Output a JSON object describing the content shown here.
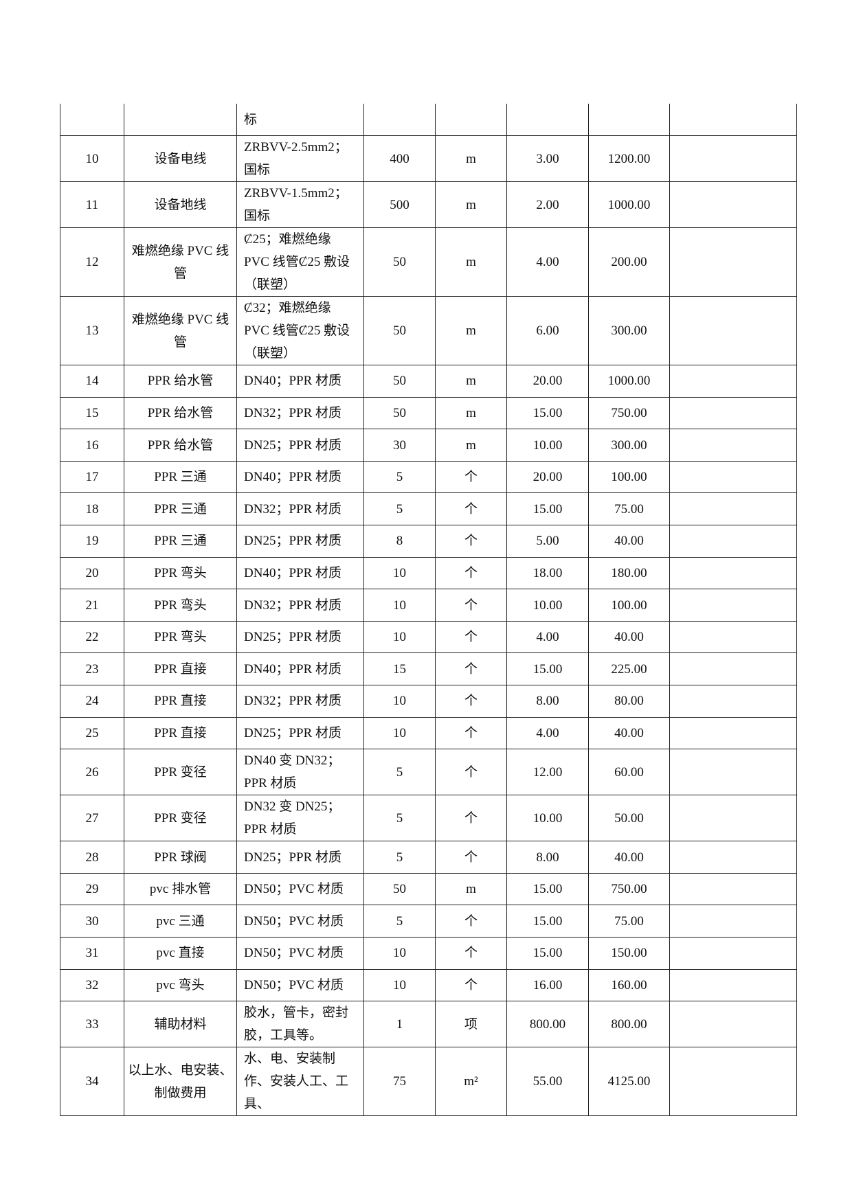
{
  "rows": [
    {
      "no": "",
      "name": "",
      "spec": "标",
      "qty": "",
      "unit": "",
      "price": "",
      "total": "",
      "note": "",
      "h": "h1",
      "first": true
    },
    {
      "no": "10",
      "name": "设备电线",
      "spec": "ZRBVV-2.5mm2；国标",
      "qty": "400",
      "unit": "m",
      "price": "3.00",
      "total": "1200.00",
      "note": "",
      "h": "h2"
    },
    {
      "no": "11",
      "name": "设备地线",
      "spec": "ZRBVV-1.5mm2；国标",
      "qty": "500",
      "unit": "m",
      "price": "2.00",
      "total": "1000.00",
      "note": "",
      "h": "h2"
    },
    {
      "no": "12",
      "name": "难燃绝缘 PVC 线管",
      "spec": "Ȼ25；难燃绝缘 PVC 线管Ȼ25 敷设（联塑）",
      "qty": "50",
      "unit": "m",
      "price": "4.00",
      "total": "200.00",
      "note": "",
      "h": "h3"
    },
    {
      "no": "13",
      "name": "难燃绝缘 PVC 线管",
      "spec": "Ȼ32；难燃绝缘 PVC 线管Ȼ25 敷设（联塑）",
      "qty": "50",
      "unit": "m",
      "price": "6.00",
      "total": "300.00",
      "note": "",
      "h": "h3"
    },
    {
      "no": "14",
      "name": "PPR 给水管",
      "spec": "DN40；PPR 材质",
      "qty": "50",
      "unit": "m",
      "price": "20.00",
      "total": "1000.00",
      "note": "",
      "h": "h1"
    },
    {
      "no": "15",
      "name": "PPR 给水管",
      "spec": "DN32；PPR 材质",
      "qty": "50",
      "unit": "m",
      "price": "15.00",
      "total": "750.00",
      "note": "",
      "h": "h1"
    },
    {
      "no": "16",
      "name": "PPR 给水管",
      "spec": "DN25；PPR 材质",
      "qty": "30",
      "unit": "m",
      "price": "10.00",
      "total": "300.00",
      "note": "",
      "h": "h1"
    },
    {
      "no": "17",
      "name": "PPR 三通",
      "spec": "DN40；PPR 材质",
      "qty": "5",
      "unit": "个",
      "price": "20.00",
      "total": "100.00",
      "note": "",
      "h": "h1"
    },
    {
      "no": "18",
      "name": "PPR 三通",
      "spec": "DN32；PPR 材质",
      "qty": "5",
      "unit": "个",
      "price": "15.00",
      "total": "75.00",
      "note": "",
      "h": "h1"
    },
    {
      "no": "19",
      "name": "PPR 三通",
      "spec": "DN25；PPR 材质",
      "qty": "8",
      "unit": "个",
      "price": "5.00",
      "total": "40.00",
      "note": "",
      "h": "h1"
    },
    {
      "no": "20",
      "name": "PPR 弯头",
      "spec": "DN40；PPR 材质",
      "qty": "10",
      "unit": "个",
      "price": "18.00",
      "total": "180.00",
      "note": "",
      "h": "h1"
    },
    {
      "no": "21",
      "name": "PPR 弯头",
      "spec": "DN32；PPR 材质",
      "qty": "10",
      "unit": "个",
      "price": "10.00",
      "total": "100.00",
      "note": "",
      "h": "h1"
    },
    {
      "no": "22",
      "name": "PPR 弯头",
      "spec": "DN25；PPR 材质",
      "qty": "10",
      "unit": "个",
      "price": "4.00",
      "total": "40.00",
      "note": "",
      "h": "h1"
    },
    {
      "no": "23",
      "name": "PPR 直接",
      "spec": "DN40；PPR 材质",
      "qty": "15",
      "unit": "个",
      "price": "15.00",
      "total": "225.00",
      "note": "",
      "h": "h1"
    },
    {
      "no": "24",
      "name": "PPR 直接",
      "spec": "DN32；PPR 材质",
      "qty": "10",
      "unit": "个",
      "price": "8.00",
      "total": "80.00",
      "note": "",
      "h": "h1"
    },
    {
      "no": "25",
      "name": "PPR 直接",
      "spec": "DN25；PPR 材质",
      "qty": "10",
      "unit": "个",
      "price": "4.00",
      "total": "40.00",
      "note": "",
      "h": "h1"
    },
    {
      "no": "26",
      "name": "PPR 变径",
      "spec": "DN40 变 DN32；PPR 材质",
      "qty": "5",
      "unit": "个",
      "price": "12.00",
      "total": "60.00",
      "note": "",
      "h": "h2"
    },
    {
      "no": "27",
      "name": "PPR 变径",
      "spec": "DN32 变 DN25；PPR 材质",
      "qty": "5",
      "unit": "个",
      "price": "10.00",
      "total": "50.00",
      "note": "",
      "h": "h2"
    },
    {
      "no": "28",
      "name": "PPR 球阀",
      "spec": "DN25；PPR 材质",
      "qty": "5",
      "unit": "个",
      "price": "8.00",
      "total": "40.00",
      "note": "",
      "h": "h1"
    },
    {
      "no": "29",
      "name": "pvc 排水管",
      "spec": "DN50；PVC 材质",
      "qty": "50",
      "unit": "m",
      "price": "15.00",
      "total": "750.00",
      "note": "",
      "h": "h1"
    },
    {
      "no": "30",
      "name": "pvc 三通",
      "spec": "DN50；PVC 材质",
      "qty": "5",
      "unit": "个",
      "price": "15.00",
      "total": "75.00",
      "note": "",
      "h": "h1"
    },
    {
      "no": "31",
      "name": "pvc 直接",
      "spec": "DN50；PVC 材质",
      "qty": "10",
      "unit": "个",
      "price": "15.00",
      "total": "150.00",
      "note": "",
      "h": "h1"
    },
    {
      "no": "32",
      "name": "pvc 弯头",
      "spec": "DN50；PVC 材质",
      "qty": "10",
      "unit": "个",
      "price": "16.00",
      "total": "160.00",
      "note": "",
      "h": "h1"
    },
    {
      "no": "33",
      "name": "辅助材料",
      "spec": "胶水，管卡，密封胶，工具等。",
      "qty": "1",
      "unit": "项",
      "price": "800.00",
      "total": "800.00",
      "note": "",
      "h": "h2"
    },
    {
      "no": "34",
      "name": "以上水、电安装、制做费用",
      "spec": "水、电、安装制作、安装人工、工具、",
      "qty": "75",
      "unit": "m²",
      "price": "55.00",
      "total": "4125.00",
      "note": "",
      "h": "h2"
    }
  ]
}
